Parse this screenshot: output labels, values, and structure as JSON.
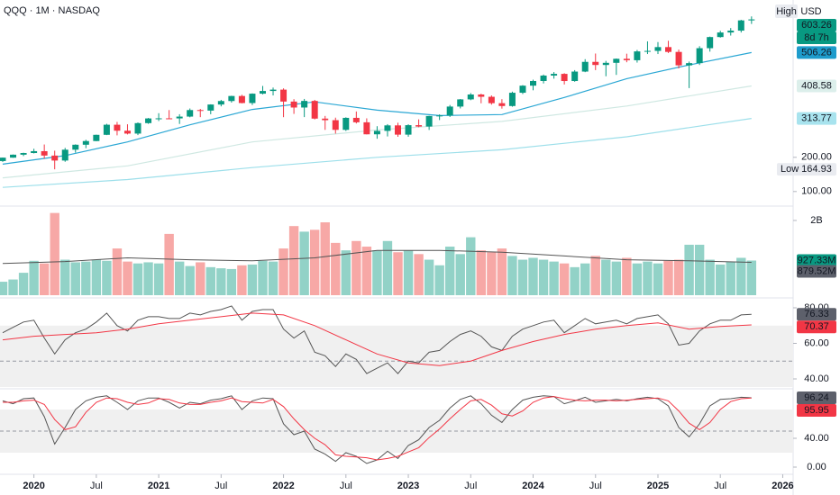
{
  "chart_data": {
    "type": "candlestick",
    "title": "QQQ · 1M · NASDAQ",
    "x": [
      "2019-10",
      "2019-11",
      "2019-12",
      "2020-01",
      "2020-02",
      "2020-03",
      "2020-04",
      "2020-05",
      "2020-06",
      "2020-07",
      "2020-08",
      "2020-09",
      "2020-10",
      "2020-11",
      "2020-12",
      "2021-01",
      "2021-02",
      "2021-03",
      "2021-04",
      "2021-05",
      "2021-06",
      "2021-07",
      "2021-08",
      "2021-09",
      "2021-10",
      "2021-11",
      "2021-12",
      "2022-01",
      "2022-02",
      "2022-03",
      "2022-04",
      "2022-05",
      "2022-06",
      "2022-07",
      "2022-08",
      "2022-09",
      "2022-10",
      "2022-11",
      "2022-12",
      "2023-01",
      "2023-02",
      "2023-03",
      "2023-04",
      "2023-05",
      "2023-06",
      "2023-07",
      "2023-08",
      "2023-09",
      "2023-10",
      "2023-11",
      "2023-12",
      "2024-01",
      "2024-02",
      "2024-03",
      "2024-04",
      "2024-05",
      "2024-06",
      "2024-07",
      "2024-08",
      "2024-09",
      "2024-10",
      "2024-11",
      "2024-12",
      "2025-01",
      "2025-02",
      "2025-03",
      "2025-04",
      "2025-05",
      "2025-06",
      "2025-07",
      "2025-08",
      "2025-09",
      "2025-10"
    ],
    "xlim": [
      "2019-10",
      "2026-02"
    ],
    "xticks": [
      {
        "value": "2020-01",
        "label": "2020"
      },
      {
        "value": "2020-07",
        "label": "Jul"
      },
      {
        "value": "2021-01",
        "label": "2021"
      },
      {
        "value": "2021-07",
        "label": "Jul"
      },
      {
        "value": "2022-01",
        "label": "2022"
      },
      {
        "value": "2022-07",
        "label": "Jul"
      },
      {
        "value": "2023-01",
        "label": "2023"
      },
      {
        "value": "2023-07",
        "label": "Jul"
      },
      {
        "value": "2024-01",
        "label": "2024"
      },
      {
        "value": "2024-07",
        "label": "Jul"
      },
      {
        "value": "2025-01",
        "label": "2025"
      },
      {
        "value": "2025-07",
        "label": "Jul"
      },
      {
        "value": "2026-01",
        "label": "2026"
      }
    ],
    "price": {
      "ylim": [
        60,
        660
      ],
      "yticks": [
        {
          "value": 100,
          "label": "100.00"
        },
        {
          "value": 200,
          "label": "200.00"
        }
      ],
      "up_color": "#089981",
      "down_color": "#f23645",
      "high_tag": "High",
      "currency": "USD",
      "low_tag": "Low",
      "countdown": "8d 7h",
      "open": [
        189.1,
        199.0,
        207.7,
        212.6,
        218.0,
        205.1,
        190.6,
        222.3,
        236.8,
        247.6,
        265.8,
        295.3,
        277.8,
        269.4,
        300.0,
        313.7,
        314.0,
        313.8,
        319.1,
        338.2,
        336.6,
        354.4,
        364.6,
        379.3,
        358.7,
        386.1,
        394.0,
        397.9,
        363.0,
        345.6,
        364.9,
        313.2,
        308.6,
        280.3,
        315.4,
        302.4,
        267.3,
        277.3,
        293.4,
        266.3,
        294.0,
        290.0,
        320.9,
        322.3,
        348.4,
        369.4,
        383.7,
        377.0,
        358.3,
        350.0,
        388.8,
        409.5,
        423.2,
        439.0,
        444.0,
        423.1,
        450.7,
        479.1,
        470.0,
        476.3,
        488.1,
        483.9,
        509.7,
        511.2,
        522.3,
        508.2,
        468.9,
        475.4,
        519.1,
        551.6,
        565.0,
        570.4,
        600.4
      ],
      "high": [
        199.6,
        208.3,
        213.5,
        225.0,
        237.5,
        219.4,
        227.5,
        237.9,
        251.2,
        266.3,
        298.0,
        303.5,
        296.6,
        302.0,
        315.0,
        329.0,
        338.2,
        326.0,
        342.8,
        341.5,
        355.0,
        368.0,
        380.0,
        382.8,
        387.0,
        408.7,
        404.0,
        401.6,
        370.0,
        370.7,
        368.0,
        321.0,
        316.0,
        317.0,
        334.0,
        314.0,
        291.0,
        297.0,
        301.0,
        296.6,
        311.0,
        321.5,
        325.5,
        353.0,
        370.5,
        387.9,
        386.0,
        381.0,
        370.0,
        392.0,
        411.0,
        427.0,
        442.0,
        449.3,
        446.0,
        455.0,
        487.0,
        503.5,
        482.0,
        489.0,
        503.0,
        514.0,
        539.1,
        537.0,
        540.8,
        515.0,
        480.0,
        525.0,
        553.0,
        570.0,
        578.0,
        602.0,
        612.0
      ],
      "low": [
        186.6,
        198.6,
        203.5,
        211.3,
        196.0,
        164.93,
        187.0,
        213.7,
        226.7,
        247.1,
        265.0,
        264.2,
        267.0,
        265.0,
        298.0,
        306.0,
        312.0,
        297.6,
        317.0,
        317.5,
        326.0,
        349.0,
        360.0,
        357.8,
        353.0,
        384.0,
        381.0,
        317.4,
        327.0,
        317.6,
        310.8,
        280.3,
        269.3,
        277.0,
        299.0,
        267.0,
        254.3,
        261.0,
        260.1,
        260.2,
        288.0,
        280.0,
        309.0,
        318.0,
        343.0,
        367.0,
        358.0,
        354.0,
        342.4,
        348.0,
        385.0,
        396.0,
        416.0,
        430.0,
        413.0,
        421.0,
        449.0,
        455.0,
        437.0,
        441.0,
        478.0,
        477.0,
        502.0,
        502.0,
        505.0,
        460.0,
        402.4,
        470.0,
        509.0,
        550.0,
        556.0,
        565.0,
        590.0
      ],
      "close": [
        199.0,
        207.7,
        212.6,
        218.0,
        205.1,
        190.6,
        222.3,
        236.8,
        247.6,
        265.8,
        295.3,
        277.8,
        269.4,
        300.0,
        313.7,
        314.0,
        313.8,
        319.1,
        338.2,
        336.6,
        354.4,
        364.6,
        379.3,
        358.7,
        386.1,
        394.0,
        397.9,
        363.0,
        345.6,
        364.9,
        313.2,
        308.6,
        280.3,
        315.4,
        302.4,
        267.3,
        277.3,
        293.4,
        266.3,
        294.0,
        290.0,
        320.9,
        322.3,
        348.4,
        369.4,
        383.7,
        377.0,
        358.3,
        350.0,
        388.8,
        409.5,
        423.2,
        439.0,
        444.0,
        423.1,
        450.7,
        479.1,
        470.0,
        476.3,
        488.1,
        483.9,
        509.7,
        511.2,
        522.3,
        508.2,
        468.9,
        475.4,
        519.1,
        551.6,
        565.0,
        570.4,
        600.4,
        603.26
      ],
      "moving_averages": [
        {
          "color": "#2aa7d4",
          "label_color": "#1e9ccc",
          "label_text_color": "#ffffff",
          "x": [
            "2019-10",
            "2020-04",
            "2020-10",
            "2021-04",
            "2021-10",
            "2022-04",
            "2022-10",
            "2023-04",
            "2023-10",
            "2024-04",
            "2024-10",
            "2025-04",
            "2025-10"
          ],
          "values": [
            180,
            205,
            245,
            295,
            340,
            362,
            338,
            322,
            325,
            375,
            430,
            470,
            506.26
          ]
        },
        {
          "color": "#cfe8e2",
          "label_color": "#dcefeb",
          "label_text_color": "#131722",
          "x": [
            "2019-10",
            "2020-10",
            "2021-10",
            "2022-10",
            "2023-10",
            "2024-10",
            "2025-10"
          ],
          "values": [
            140,
            175,
            245,
            280,
            305,
            350,
            408.58
          ]
        },
        {
          "color": "#9ddfea",
          "label_color": "#a8e3ee",
          "label_text_color": "#131722",
          "x": [
            "2019-10",
            "2020-10",
            "2021-10",
            "2022-10",
            "2023-10",
            "2024-10",
            "2025-10"
          ],
          "values": [
            112,
            135,
            170,
            200,
            222,
            260,
            313.77
          ]
        }
      ]
    },
    "volume": {
      "type": "bar",
      "ylim": [
        0,
        2360000000
      ],
      "yticks": [
        {
          "value": 2000000000,
          "label": "2B"
        }
      ],
      "up_color": "#92d2c7",
      "down_color": "#f7a8a6",
      "values": [
        360000000.0,
        420000000.0,
        600000000.0,
        920000000.0,
        850000000.0,
        2200000000.0,
        950000000.0,
        880000000.0,
        900000000.0,
        950000000.0,
        920000000.0,
        1250000000.0,
        900000000.0,
        850000000.0,
        880000000.0,
        850000000.0,
        1640000000.0,
        900000000.0,
        780000000.0,
        880000000.0,
        750000000.0,
        720000000.0,
        700000000.0,
        800000000.0,
        820000000.0,
        920000000.0,
        900000000.0,
        1250000000.0,
        1850000000.0,
        1700000000.0,
        1750000000.0,
        1950000000.0,
        1400000000.0,
        1200000000.0,
        1450000000.0,
        1300000000.0,
        1200000000.0,
        1450000000.0,
        1150000000.0,
        1200000000.0,
        1100000000.0,
        950000000.0,
        800000000.0,
        1300000000.0,
        1100000000.0,
        1550000000.0,
        1200000000.0,
        1150000000.0,
        1250000000.0,
        1050000000.0,
        950000000.0,
        1000000000.0,
        950000000.0,
        900000000.0,
        850000000.0,
        750000000.0,
        850000000.0,
        1050000000.0,
        950000000.0,
        900000000.0,
        1000000000.0,
        850000000.0,
        900000000.0,
        850000000.0,
        920000000.0,
        950000000.0,
        1350000000.0,
        1350000000.0,
        950000000.0,
        820000000.0,
        900000000.0,
        1000000000.0,
        927330000
      ],
      "last_label": "927.33M",
      "average": {
        "color": "#555555",
        "label_color": "#5d606b",
        "last_label": "879.52M",
        "x": [
          "2019-10",
          "2020-04",
          "2020-10",
          "2021-04",
          "2021-10",
          "2022-04",
          "2022-10",
          "2023-04",
          "2023-10",
          "2024-04",
          "2024-10",
          "2025-04",
          "2025-10"
        ],
        "values": [
          850000000.0,
          900000000.0,
          1000000000.0,
          950000000.0,
          920000000.0,
          1000000000.0,
          1200000000.0,
          1200000000.0,
          1150000000.0,
          1050000000.0,
          950000000.0,
          920000000.0,
          879520000
        ]
      }
    },
    "rsi": {
      "type": "line",
      "ylim": [
        35.44,
        84.56
      ],
      "yticks": [
        {
          "value": 80,
          "label": "80.00"
        },
        {
          "value": 60,
          "label": "60.00"
        },
        {
          "value": 40,
          "label": "40.00"
        }
      ],
      "band": [
        30,
        70
      ],
      "midline": 50,
      "band_color": "#f0f0f0",
      "series": [
        {
          "color": "#555555",
          "label_color": "#5d606b",
          "values": [
            66,
            69,
            72,
            73,
            63,
            54,
            62,
            66,
            68,
            72,
            77,
            70,
            67,
            73,
            75,
            75,
            74,
            74,
            77,
            76,
            78,
            79,
            81,
            73,
            78,
            79,
            79,
            68,
            63,
            67,
            55,
            53,
            47,
            54,
            51,
            43,
            46,
            49,
            43,
            50,
            49,
            55,
            56,
            61,
            65,
            67,
            64,
            58,
            56,
            64,
            68,
            70,
            72,
            73,
            66,
            70,
            74,
            71,
            72,
            73,
            71,
            74,
            75,
            76,
            71,
            59,
            60,
            67,
            71,
            73,
            73,
            76,
            76.33
          ]
        }
      ],
      "average": {
        "color": "#f23645",
        "label_color": "#f23645",
        "x": [
          "2019-10",
          "2020-01",
          "2020-04",
          "2020-07",
          "2020-10",
          "2021-01",
          "2021-04",
          "2021-07",
          "2021-10",
          "2022-01",
          "2022-04",
          "2022-07",
          "2022-10",
          "2023-01",
          "2023-04",
          "2023-07",
          "2023-10",
          "2024-01",
          "2024-04",
          "2024-07",
          "2024-10",
          "2025-01",
          "2025-04",
          "2025-07",
          "2025-10"
        ],
        "values": [
          62,
          64,
          65,
          66,
          68,
          71,
          73,
          75,
          77,
          76,
          70,
          62,
          54,
          49,
          47.5,
          50,
          56,
          61,
          65,
          68,
          70,
          71.5,
          68,
          69.5,
          70.37
        ]
      }
    },
    "stoch": {
      "type": "line",
      "ylim": [
        -7.5,
        105
      ],
      "yticks": [
        {
          "value": 40,
          "label": "40.00"
        },
        {
          "value": 0,
          "label": "0.00"
        }
      ],
      "band": [
        20,
        80
      ],
      "midline": 50,
      "band_color": "#f0f0f0",
      "series": [
        {
          "color": "#555555",
          "label_color": "#5d606b",
          "values": [
            92,
            88,
            95,
            96,
            70,
            32,
            55,
            80,
            92,
            97,
            99,
            90,
            80,
            92,
            96,
            96,
            90,
            82,
            90,
            88,
            93,
            95,
            99,
            80,
            92,
            96,
            95,
            60,
            45,
            50,
            25,
            18,
            8,
            20,
            15,
            5,
            10,
            22,
            12,
            30,
            38,
            55,
            65,
            82,
            94,
            99,
            88,
            72,
            62,
            80,
            93,
            97,
            99,
            98,
            88,
            92,
            97,
            90,
            92,
            94,
            92,
            95,
            97,
            95,
            85,
            55,
            42,
            60,
            85,
            94,
            95,
            97,
            96.24
          ]
        },
        {
          "color": "#f23645",
          "label_color": "#f23645",
          "values": [
            90,
            90,
            92,
            93,
            87,
            66,
            52,
            56,
            76,
            90,
            96,
            95,
            90,
            87,
            89,
            95,
            94,
            89,
            87,
            87,
            90,
            92,
            96,
            91,
            90,
            89,
            94,
            84,
            67,
            52,
            40,
            31,
            17,
            15,
            14,
            13,
            10,
            12,
            15,
            21,
            27,
            41,
            53,
            67,
            80,
            92,
            94,
            86,
            74,
            71,
            78,
            90,
            96,
            98,
            95,
            93,
            92,
            93,
            93,
            92,
            93,
            94,
            95,
            96,
            92,
            78,
            61,
            52,
            62,
            80,
            91,
            95,
            95.95
          ]
        }
      ]
    }
  }
}
